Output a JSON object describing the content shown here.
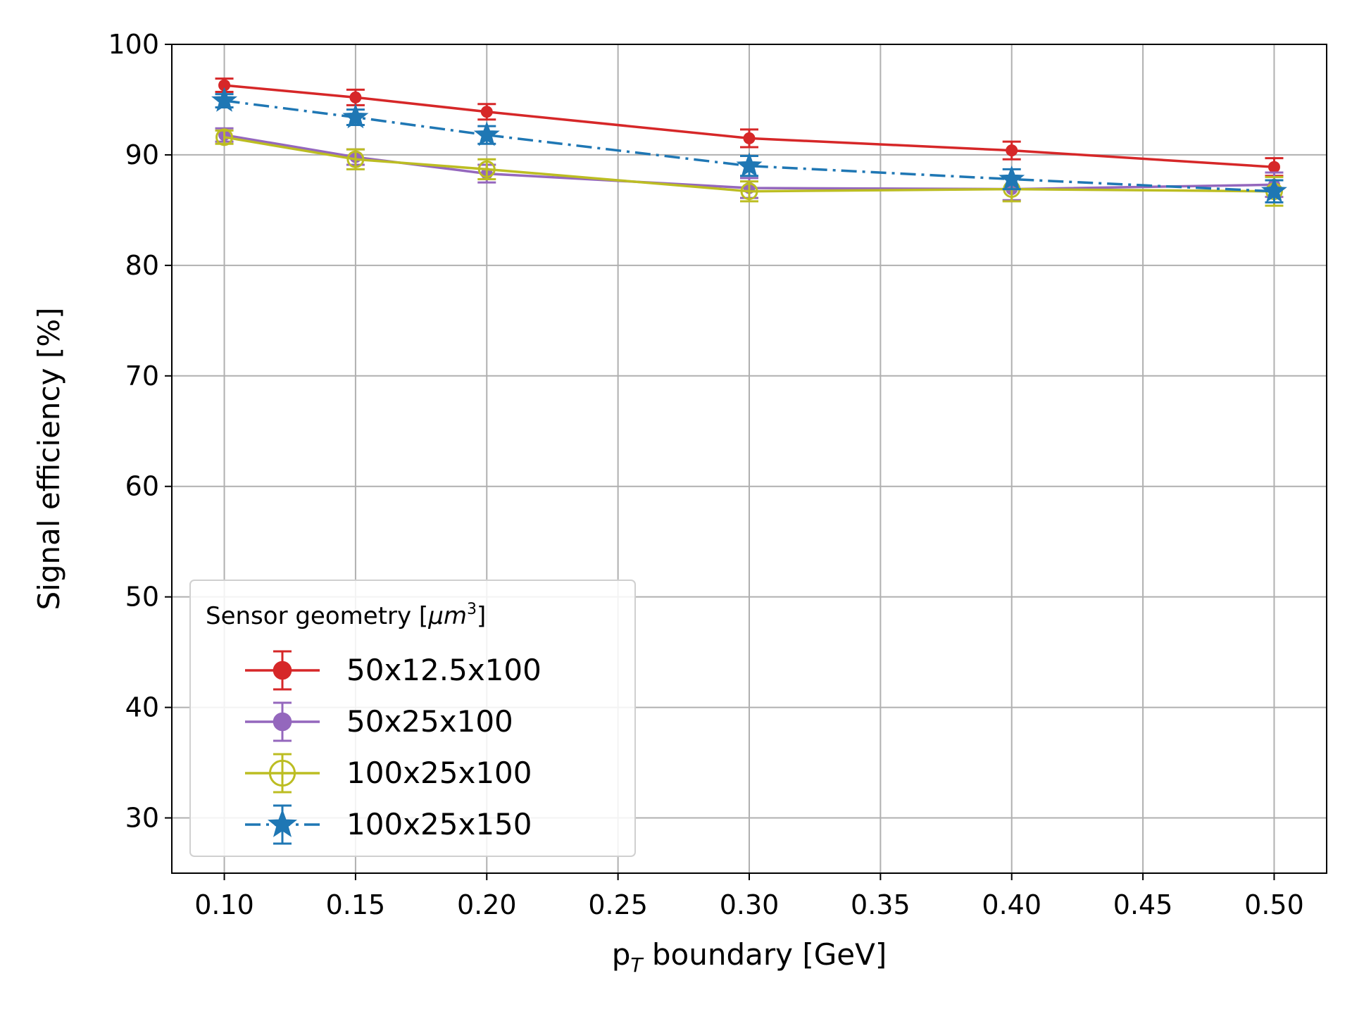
{
  "chart_data": {
    "type": "line",
    "title": "",
    "xlabel_main": "p",
    "xlabel_sub": "T",
    "xlabel_rest": " boundary [GeV]",
    "ylabel": "Signal efficiency [%]",
    "xlim": [
      0.08,
      0.52
    ],
    "ylim": [
      25,
      100
    ],
    "x_ticks": [
      0.1,
      0.15,
      0.2,
      0.25,
      0.3,
      0.35,
      0.4,
      0.45,
      0.5
    ],
    "x_tick_labels": [
      "0.10",
      "0.15",
      "0.20",
      "0.25",
      "0.30",
      "0.35",
      "0.40",
      "0.45",
      "0.50"
    ],
    "y_ticks": [
      30,
      40,
      50,
      60,
      70,
      80,
      90,
      100
    ],
    "y_tick_labels": [
      "30",
      "40",
      "50",
      "60",
      "70",
      "80",
      "90",
      "100"
    ],
    "grid": true,
    "legend": {
      "title_prefix": "Sensor geometry [",
      "title_mu": "μ",
      "title_m": "m",
      "title_sup": "3",
      "title_suffix": "]",
      "location": "lower-left"
    },
    "x": [
      0.1,
      0.15,
      0.2,
      0.3,
      0.4,
      0.5
    ],
    "series": [
      {
        "name": "50x12.5x100",
        "color": "#d62728",
        "marker": "filled-circle",
        "linestyle": "solid",
        "values": [
          96.3,
          95.2,
          93.9,
          91.5,
          90.4,
          88.9
        ],
        "errors": [
          0.6,
          0.7,
          0.7,
          0.8,
          0.8,
          0.8
        ]
      },
      {
        "name": "50x25x100",
        "color": "#9467bd",
        "marker": "filled-circle",
        "linestyle": "solid",
        "values": [
          91.8,
          89.8,
          88.3,
          87.0,
          86.9,
          87.3
        ],
        "errors": [
          0.6,
          0.7,
          0.8,
          0.9,
          1.0,
          1.1
        ]
      },
      {
        "name": "100x25x100",
        "color": "#bcbd22",
        "marker": "open-circle",
        "linestyle": "solid",
        "values": [
          91.6,
          89.6,
          88.7,
          86.7,
          86.9,
          86.7
        ],
        "errors": [
          0.6,
          0.9,
          0.9,
          0.9,
          1.1,
          1.3
        ]
      },
      {
        "name": "100x25x150",
        "color": "#1f77b4",
        "marker": "star",
        "linestyle": "dash-dot",
        "values": [
          94.9,
          93.4,
          91.8,
          89.0,
          87.8,
          86.7
        ],
        "errors": [
          0.6,
          0.7,
          0.8,
          0.9,
          0.9,
          1.0
        ]
      }
    ]
  }
}
